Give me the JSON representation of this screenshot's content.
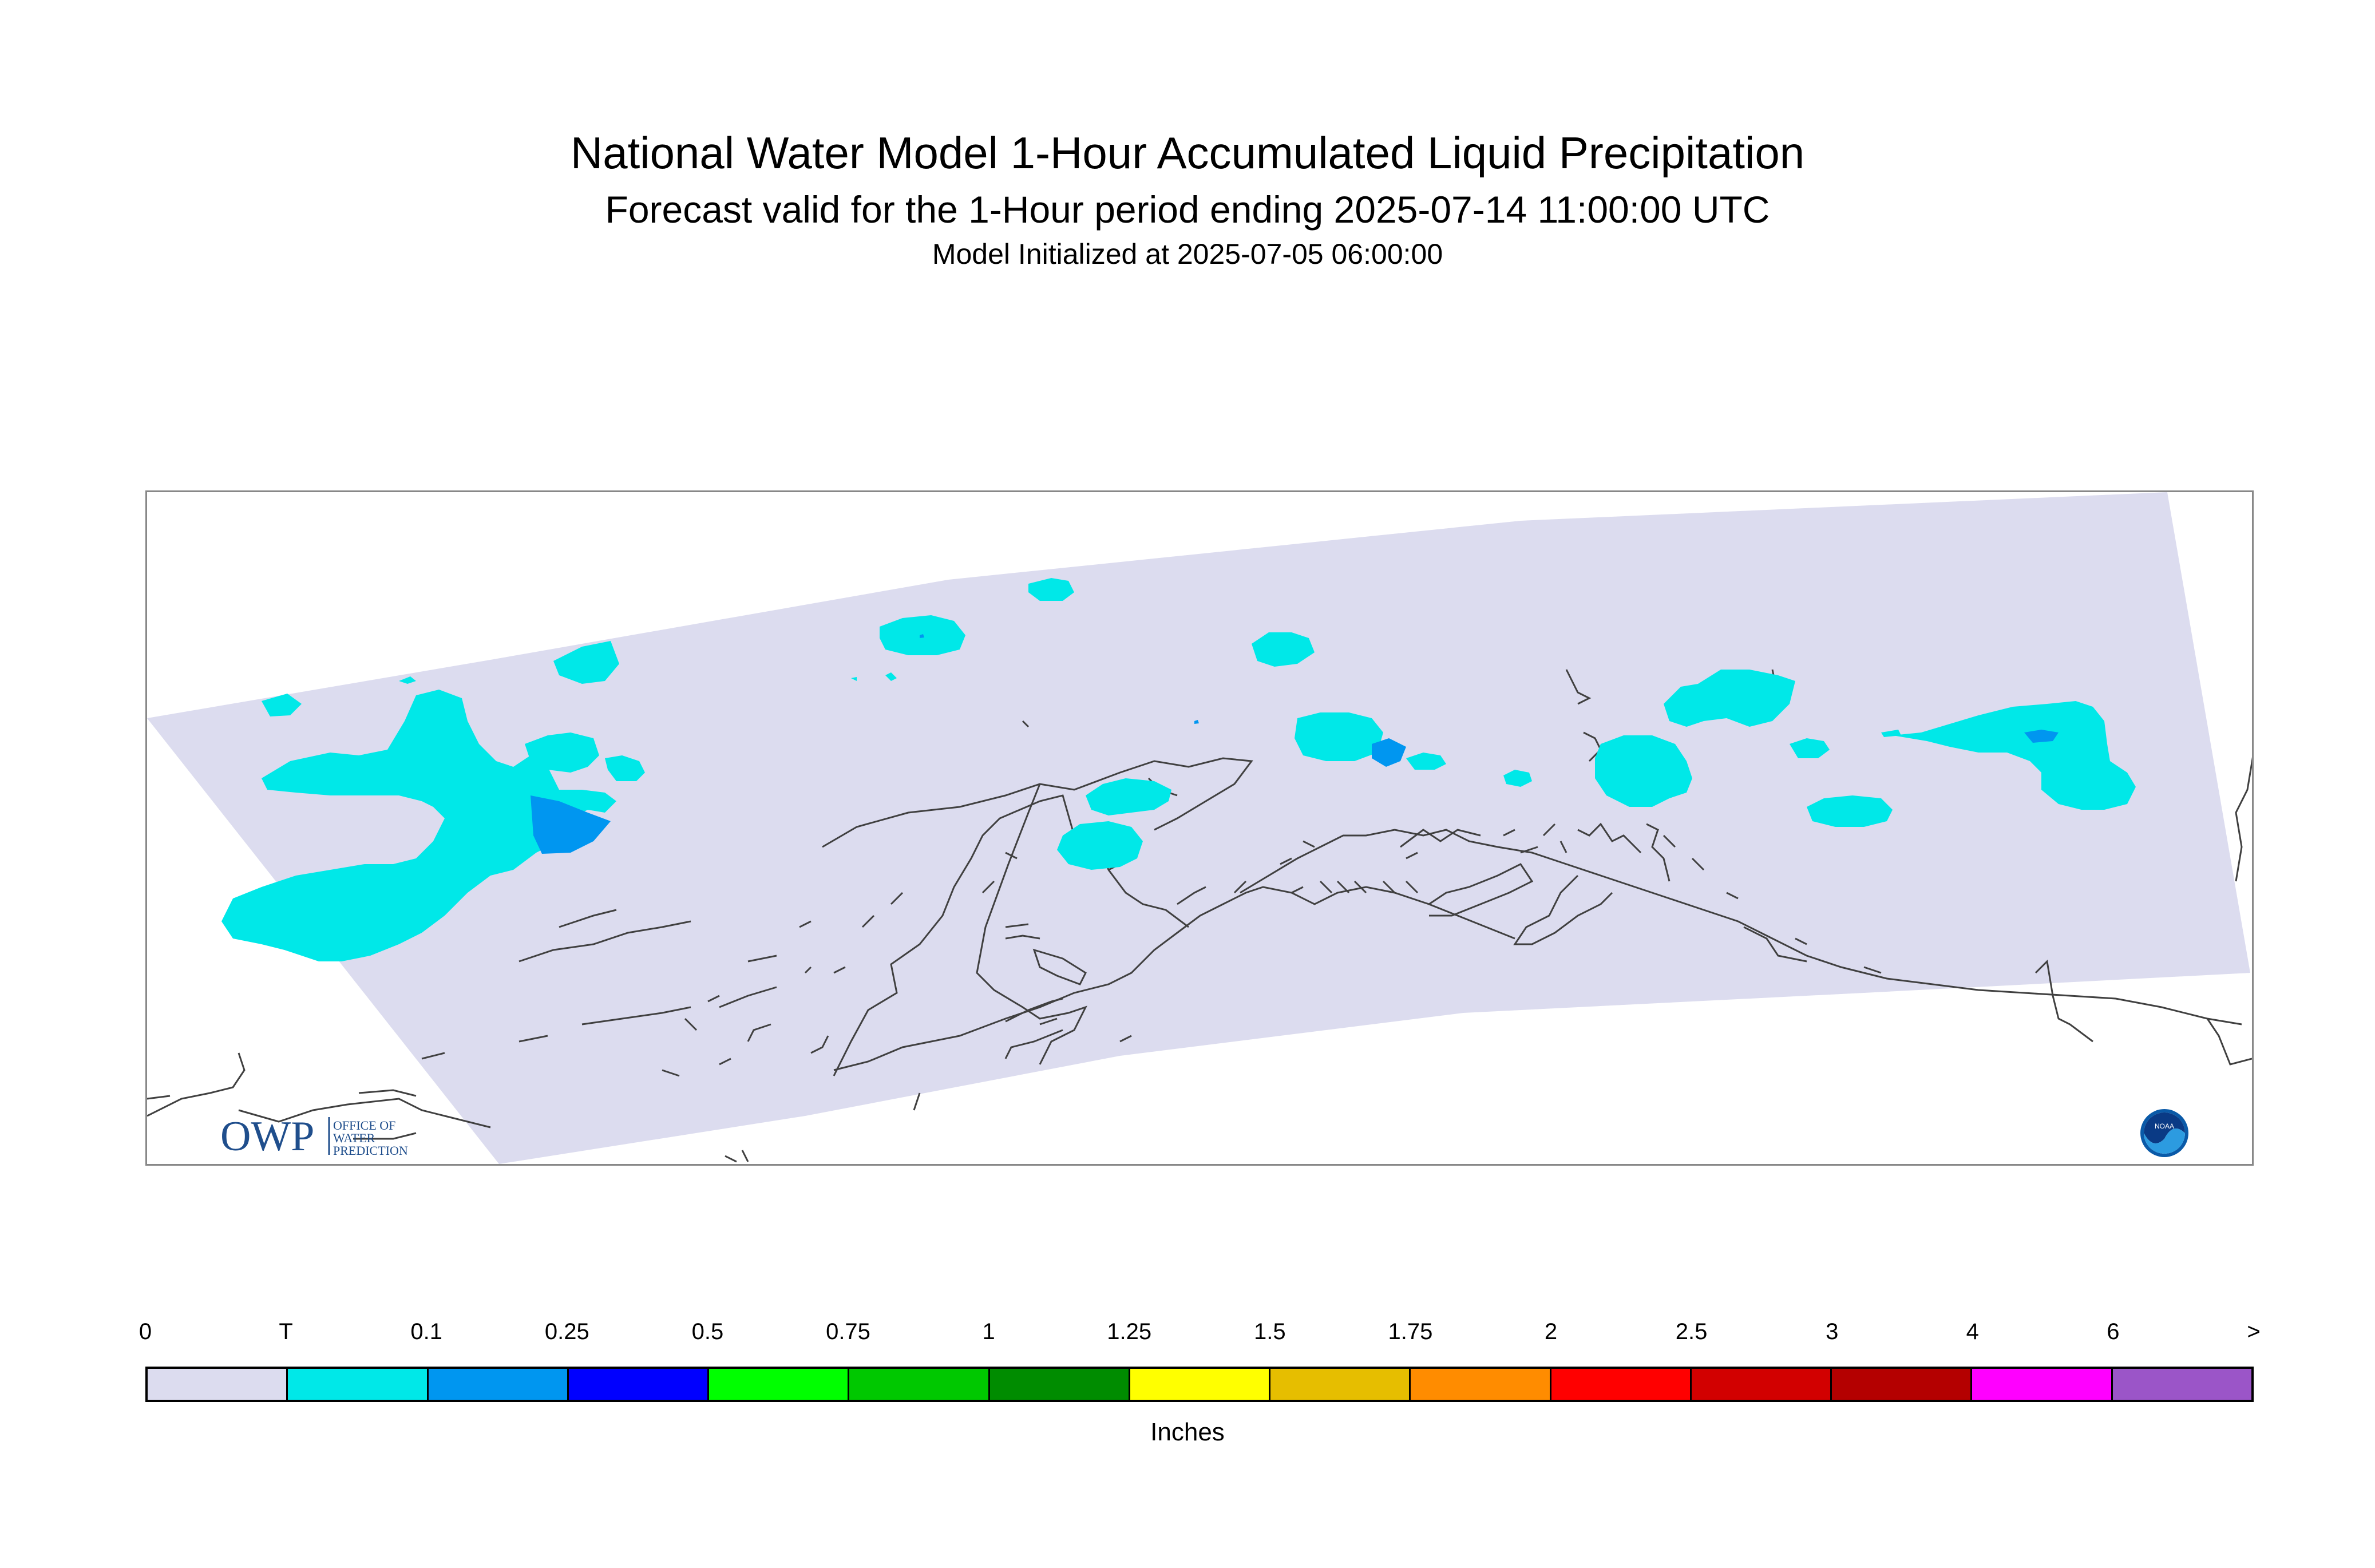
{
  "header": {
    "title": "National Water Model 1-Hour Accumulated Liquid Precipitation",
    "subtitle": "Forecast valid for the 1-Hour period ending 2025-07-14 11:00:00 UTC",
    "initialized": "Model Initialized at 2025-07-05 06:00:00"
  },
  "logos": {
    "owp_mark": "OWP",
    "owp_lines": [
      "OFFICE OF",
      "WATER",
      "PREDICTION"
    ],
    "noaa_mark": "NOAA"
  },
  "icons": {
    "noaa": "noaa-logo-icon",
    "owp": "owp-logo-icon"
  },
  "legend": {
    "labels": [
      "0",
      "T",
      "0.1",
      "0.25",
      "0.5",
      "0.75",
      "1",
      "1.25",
      "1.5",
      "1.75",
      "2",
      "2.5",
      "3",
      "4",
      "6",
      ">"
    ],
    "colors": [
      "#dcdcef",
      "#00e8e8",
      "#0096f0",
      "#0000ff",
      "#00ff00",
      "#00c800",
      "#008c00",
      "#ffff00",
      "#e6be00",
      "#ff8c00",
      "#ff0000",
      "#d20000",
      "#b40000",
      "#ff00ff",
      "#9b55c8"
    ],
    "units": "Inches"
  }
}
